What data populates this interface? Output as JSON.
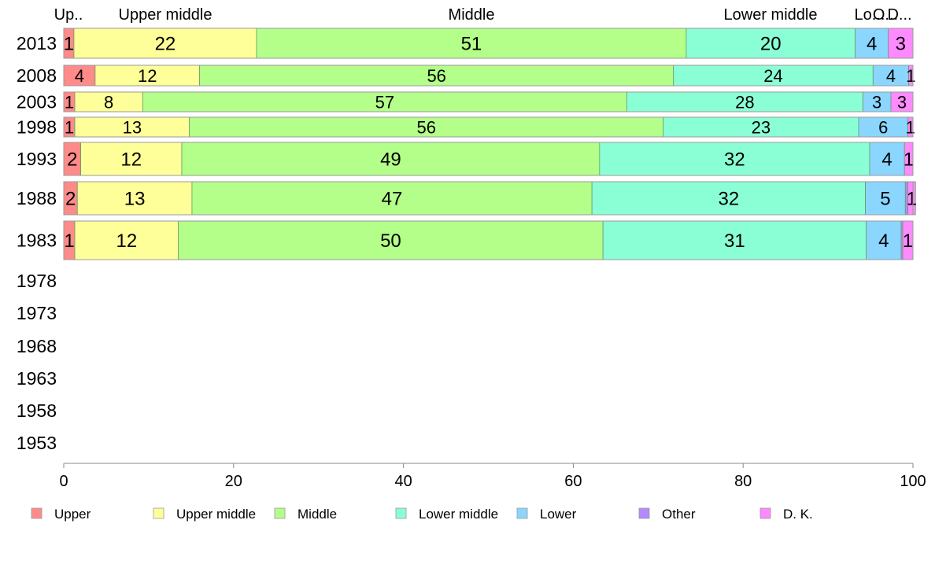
{
  "chart_data": {
    "type": "bar",
    "orientation": "horizontal",
    "stacked": true,
    "xlim": [
      0,
      100
    ],
    "x_ticks": [
      0,
      20,
      40,
      60,
      80,
      100
    ],
    "categories": [
      "2013",
      "2008",
      "2003",
      "1998",
      "1993",
      "1988",
      "1983",
      "1978",
      "1973",
      "1968",
      "1963",
      "1958",
      "1953"
    ],
    "top_labels": [
      "Up..",
      "Upper middle",
      "Middle",
      "Lower middle",
      "Lo...",
      "O...",
      "D..."
    ],
    "series": [
      {
        "name": "Upper",
        "color": "#ff8a8a",
        "values": [
          1.2,
          3.7,
          1.3,
          1.3,
          2.0,
          1.6,
          1.3,
          null,
          null,
          null,
          null,
          null,
          null
        ],
        "labels": [
          "1",
          "4",
          "1",
          "1",
          "2",
          "2",
          "1",
          "",
          "",
          "",
          "",
          "",
          ""
        ]
      },
      {
        "name": "Upper middle",
        "color": "#ffff99",
        "values": [
          21.5,
          12.3,
          8.0,
          13.5,
          11.9,
          13.5,
          12.2,
          null,
          null,
          null,
          null,
          null,
          null
        ],
        "labels": [
          "22",
          "12",
          "8",
          "13",
          "12",
          "13",
          "12",
          "",
          "",
          "",
          "",
          "",
          ""
        ]
      },
      {
        "name": "Middle",
        "color": "#b3ff8a",
        "values": [
          50.6,
          55.8,
          57.0,
          55.8,
          49.2,
          47.1,
          50.0,
          null,
          null,
          null,
          null,
          null,
          null
        ],
        "labels": [
          "51",
          "56",
          "57",
          "56",
          "49",
          "47",
          "50",
          "",
          "",
          "",
          "",
          "",
          ""
        ]
      },
      {
        "name": "Lower middle",
        "color": "#8affd6",
        "values": [
          19.9,
          23.5,
          27.8,
          23.0,
          31.8,
          32.2,
          31.0,
          null,
          null,
          null,
          null,
          null,
          null
        ],
        "labels": [
          "20",
          "24",
          "28",
          "23",
          "32",
          "32",
          "31",
          "",
          "",
          "",
          "",
          "",
          ""
        ]
      },
      {
        "name": "Lower",
        "color": "#8ad6ff",
        "values": [
          3.9,
          4.2,
          3.3,
          5.8,
          4.1,
          4.7,
          4.1,
          null,
          null,
          null,
          null,
          null,
          null
        ],
        "labels": [
          "4",
          "4",
          "3",
          "6",
          "4",
          "5",
          "4",
          "",
          "",
          "",
          "",
          "",
          ""
        ]
      },
      {
        "name": "Other",
        "color": "#b38aff",
        "values": [
          0.0,
          0.0,
          0.0,
          0.0,
          0.0,
          0.3,
          0.2,
          null,
          null,
          null,
          null,
          null,
          null
        ],
        "labels": [
          "",
          "",
          "",
          "",
          "",
          "",
          "",
          "",
          "",
          "",
          "",
          "",
          ""
        ]
      },
      {
        "name": "D. K.",
        "color": "#ff8aff",
        "values": [
          2.9,
          0.5,
          2.6,
          0.6,
          1.0,
          0.9,
          1.2,
          null,
          null,
          null,
          null,
          null,
          null
        ],
        "labels": [
          "3",
          "1",
          "3",
          "1",
          "1",
          "1",
          "1",
          "",
          "",
          "",
          "",
          "",
          ""
        ]
      }
    ],
    "legend": {
      "position": "bottom",
      "entries": [
        "Upper",
        "Upper middle",
        "Middle",
        "Lower middle",
        "Lower",
        "Other",
        "D. K."
      ]
    },
    "grid": false
  }
}
